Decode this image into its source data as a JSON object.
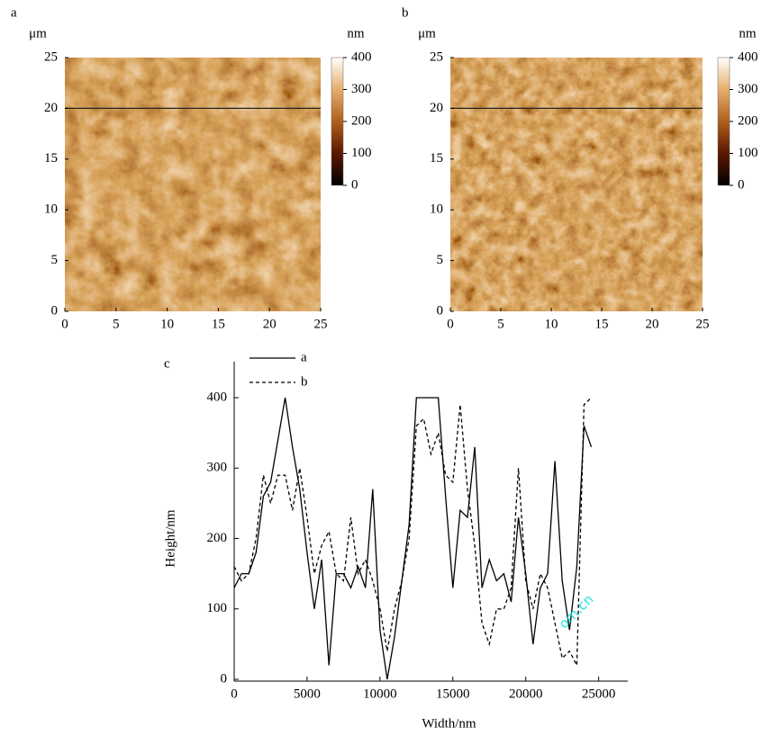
{
  "chart_data": [
    {
      "type": "image",
      "label": "a",
      "y_unit": "μm",
      "colorbar_unit": "nm",
      "xlim": [
        0,
        25
      ],
      "ylim": [
        0,
        25
      ],
      "xticks": [
        0,
        5,
        10,
        15,
        20,
        25
      ],
      "yticks": [
        0,
        5,
        10,
        15,
        20,
        25
      ],
      "clim": [
        0,
        400
      ],
      "colorbar_ticks": [
        0,
        100,
        200,
        300,
        400
      ],
      "colormap": [
        "#000000",
        "#5a1800",
        "#b0601c",
        "#e6ad6c",
        "#ffffff"
      ],
      "profile_y": 20
    },
    {
      "type": "image",
      "label": "b",
      "y_unit": "μm",
      "colorbar_unit": "nm",
      "xlim": [
        0,
        25
      ],
      "ylim": [
        0,
        25
      ],
      "xticks": [
        0,
        5,
        10,
        15,
        20,
        25
      ],
      "yticks": [
        0,
        5,
        10,
        15,
        20,
        25
      ],
      "clim": [
        0,
        400
      ],
      "colorbar_ticks": [
        0,
        100,
        200,
        300,
        400
      ],
      "colormap": [
        "#000000",
        "#5a1800",
        "#b0601c",
        "#e6ad6c",
        "#ffffff"
      ],
      "profile_y": 20
    },
    {
      "type": "line",
      "label": "c",
      "xlabel": "Width/nm",
      "ylabel": "Height/nm",
      "color": "#000000",
      "xlim": [
        0,
        27000
      ],
      "ylim": [
        0,
        400
      ],
      "xticks": [
        0,
        5000,
        10000,
        15000,
        20000,
        25000
      ],
      "yticks": [
        0,
        100,
        200,
        300,
        400
      ],
      "x": [
        0,
        500,
        1000,
        1500,
        2000,
        2500,
        3000,
        3500,
        4000,
        4500,
        5000,
        5500,
        6000,
        6500,
        7000,
        7500,
        8000,
        8500,
        9000,
        9500,
        10000,
        10500,
        11000,
        11500,
        12000,
        12500,
        13000,
        13500,
        14000,
        14500,
        15000,
        15500,
        16000,
        16500,
        17000,
        17500,
        18000,
        18500,
        19000,
        19500,
        20000,
        20500,
        21000,
        21500,
        22000,
        22500,
        23000,
        23500,
        24000,
        24500
      ],
      "series": [
        {
          "name": "a",
          "style": "solid",
          "values": [
            130,
            150,
            150,
            180,
            260,
            280,
            340,
            400,
            330,
            270,
            180,
            100,
            170,
            20,
            150,
            150,
            130,
            160,
            130,
            270,
            70,
            0,
            60,
            140,
            220,
            400,
            400,
            400,
            400,
            260,
            130,
            240,
            230,
            330,
            130,
            170,
            140,
            150,
            110,
            230,
            150,
            50,
            130,
            150,
            310,
            140,
            70,
            160,
            360,
            330
          ]
        },
        {
          "name": "b",
          "style": "dashed",
          "values": [
            160,
            140,
            150,
            200,
            290,
            250,
            290,
            290,
            240,
            300,
            230,
            150,
            190,
            210,
            150,
            140,
            230,
            150,
            170,
            140,
            100,
            40,
            100,
            140,
            200,
            360,
            370,
            320,
            350,
            290,
            280,
            390,
            270,
            190,
            80,
            50,
            100,
            100,
            130,
            300,
            140,
            100,
            150,
            130,
            80,
            30,
            40,
            20,
            390,
            400
          ]
        }
      ]
    }
  ],
  "watermark": "om.cn"
}
